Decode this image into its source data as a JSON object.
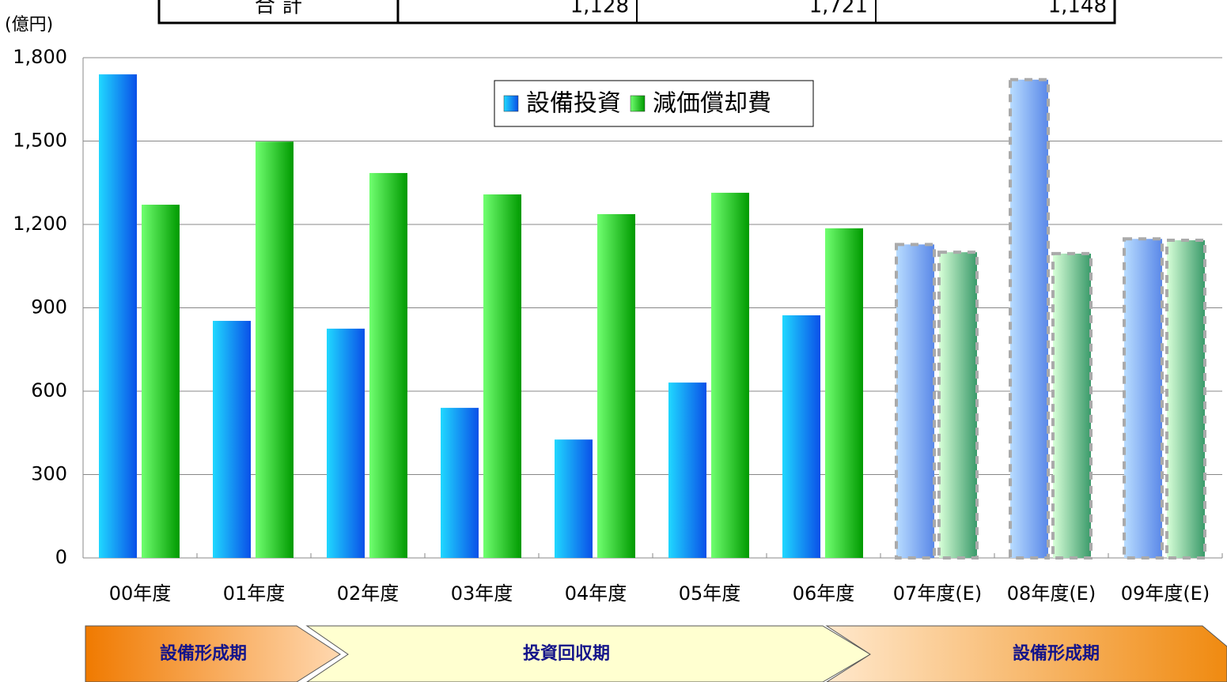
{
  "table": {
    "label": "合 計",
    "cells": [
      "1,128",
      "1,721",
      "1,148"
    ]
  },
  "chart_data": {
    "type": "bar",
    "y_label": "(億円)",
    "categories": [
      "00年度",
      "01年度",
      "02年度",
      "03年度",
      "04年度",
      "05年度",
      "06年度",
      "07年度(E)",
      "08年度(E)",
      "09年度(E)"
    ],
    "series": [
      {
        "name": "設備投資",
        "color": "#0a6ef0",
        "values": [
          1740,
          853,
          825,
          540,
          426,
          631,
          873,
          1128,
          1721,
          1148
        ]
      },
      {
        "name": "減価償却費",
        "color": "#10b010",
        "values": [
          1271,
          1498,
          1385,
          1308,
          1237,
          1314,
          1186,
          1100,
          1095,
          1143
        ]
      }
    ],
    "dashed_categories": [
      7,
      8,
      9
    ],
    "ylim": [
      0,
      1800
    ],
    "yticks": [
      0,
      300,
      600,
      900,
      {
        "value": 1200,
        "label": "1,200"
      },
      {
        "value": 1500,
        "label": "1,500"
      },
      {
        "value": 1800,
        "label": "1,800"
      }
    ],
    "grid": true,
    "legend": "top",
    "phases": [
      "設備形成期",
      "投資回収期",
      "設備形成期"
    ]
  }
}
